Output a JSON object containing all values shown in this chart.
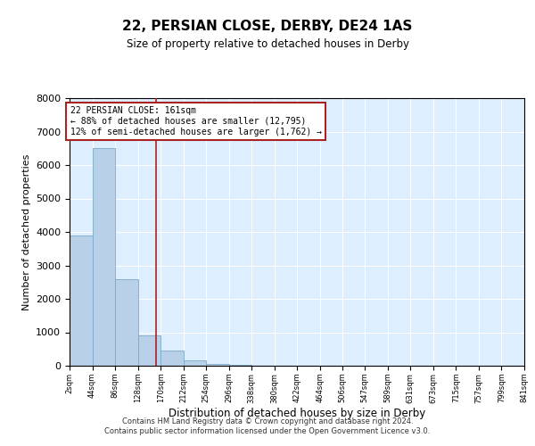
{
  "title": "22, PERSIAN CLOSE, DERBY, DE24 1AS",
  "subtitle": "Size of property relative to detached houses in Derby",
  "xlabel": "Distribution of detached houses by size in Derby",
  "ylabel": "Number of detached properties",
  "bin_edges": [
    2,
    44,
    86,
    128,
    170,
    212,
    254,
    296,
    338,
    380,
    422,
    464,
    506,
    547,
    589,
    631,
    673,
    715,
    757,
    799,
    841
  ],
  "bar_heights": [
    3900,
    6500,
    2600,
    900,
    450,
    150,
    50,
    20,
    5,
    2,
    1,
    0,
    0,
    0,
    0,
    0,
    0,
    0,
    0,
    0
  ],
  "bar_color": "#b8d0e8",
  "bar_edgecolor": "#7aaac8",
  "property_size": 161,
  "vline_color": "#aa2222",
  "annotation_text": "22 PERSIAN CLOSE: 161sqm\n← 88% of detached houses are smaller (12,795)\n12% of semi-detached houses are larger (1,762) →",
  "annotation_box_color": "#aa2222",
  "ylim": [
    0,
    8000
  ],
  "yticks": [
    0,
    1000,
    2000,
    3000,
    4000,
    5000,
    6000,
    7000,
    8000
  ],
  "background_color": "#ddeeff",
  "grid_color": "#ffffff",
  "footer_line1": "Contains HM Land Registry data © Crown copyright and database right 2024.",
  "footer_line2": "Contains public sector information licensed under the Open Government Licence v3.0."
}
